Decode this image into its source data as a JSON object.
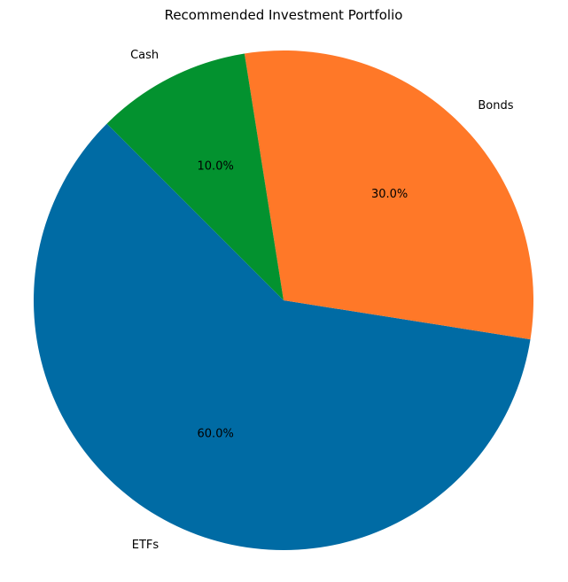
{
  "chart_data": {
    "type": "pie",
    "title": "Recommended Investment Portfolio",
    "slices": [
      {
        "label": "ETFs",
        "value": 60.0,
        "pct_label": "60.0%",
        "color": "#006BA4"
      },
      {
        "label": "Bonds",
        "value": 30.0,
        "pct_label": "30.0%",
        "color": "#FF7828"
      },
      {
        "label": "Cash",
        "value": 10.0,
        "pct_label": "10.0%",
        "color": "#03922F"
      }
    ],
    "start_angle_deg": 135,
    "direction": "counterclockwise"
  }
}
